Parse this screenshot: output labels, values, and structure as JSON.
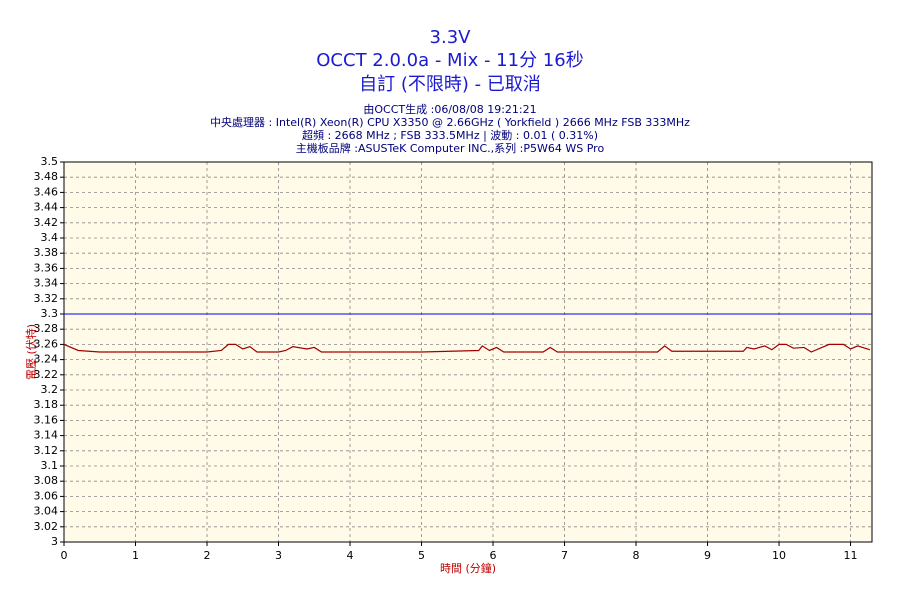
{
  "chart_data": {
    "type": "line",
    "title": "3.3V",
    "subtitle": "OCCT 2.0.0a - Mix - 11分 16秒",
    "subtitle2": "自訂 (不限時) - 已取消",
    "info": [
      "由OCCT生成 :06/08/08 19:21:21",
      "中央處理器 : Intel(R) Xeon(R) CPU X3350 @ 2.66GHz ( Yorkfield ) 2666 MHz FSB 333MHz",
      "超頻 : 2668 MHz ; FSB 333.5MHz | 波動 : 0.01 ( 0.31%)",
      "主機板品牌 :ASUSTeK Computer INC.,系列 :P5W64 WS Pro"
    ],
    "y_label": "電壓 (伏特)",
    "x_label": "時間 (分鐘)",
    "xlim": [
      0,
      11.3
    ],
    "xticks": [
      0,
      1,
      2,
      3,
      4,
      5,
      6,
      7,
      8,
      9,
      10,
      11
    ],
    "ylim": [
      3,
      3.5
    ],
    "yticks": [
      3,
      3.02,
      3.04,
      3.06,
      3.08,
      3.1,
      3.12,
      3.14,
      3.16,
      3.18,
      3.2,
      3.22,
      3.24,
      3.26,
      3.28,
      3.3,
      3.32,
      3.34,
      3.36,
      3.38,
      3.4,
      3.42,
      3.44,
      3.46,
      3.48,
      3.5
    ],
    "grid": true,
    "reference": {
      "value": 3.3,
      "color": "#0000ff"
    },
    "x": [
      0,
      0.2,
      0.5,
      1,
      1.5,
      2,
      2.2,
      2.3,
      2.4,
      2.5,
      2.6,
      2.7,
      3,
      3.1,
      3.2,
      3.4,
      3.5,
      3.6,
      4,
      5,
      5.8,
      5.85,
      5.95,
      6.05,
      6.15,
      6.7,
      6.8,
      6.9,
      8.3,
      8.4,
      8.5,
      9.5,
      9.55,
      9.65,
      9.8,
      9.9,
      10,
      10.1,
      10.2,
      10.35,
      10.45,
      10.6,
      10.7,
      10.9,
      11,
      11.1,
      11.2,
      11.27
    ],
    "series": [
      {
        "color": "#a00000",
        "values": [
          3.26,
          3.252,
          3.25,
          3.25,
          3.25,
          3.25,
          3.252,
          3.26,
          3.26,
          3.254,
          3.257,
          3.25,
          3.25,
          3.252,
          3.257,
          3.254,
          3.256,
          3.25,
          3.25,
          3.25,
          3.252,
          3.258,
          3.252,
          3.256,
          3.25,
          3.25,
          3.256,
          3.25,
          3.25,
          3.258,
          3.251,
          3.251,
          3.256,
          3.254,
          3.258,
          3.253,
          3.26,
          3.26,
          3.255,
          3.256,
          3.25,
          3.256,
          3.26,
          3.26,
          3.254,
          3.258,
          3.255,
          3.253
        ]
      }
    ]
  }
}
